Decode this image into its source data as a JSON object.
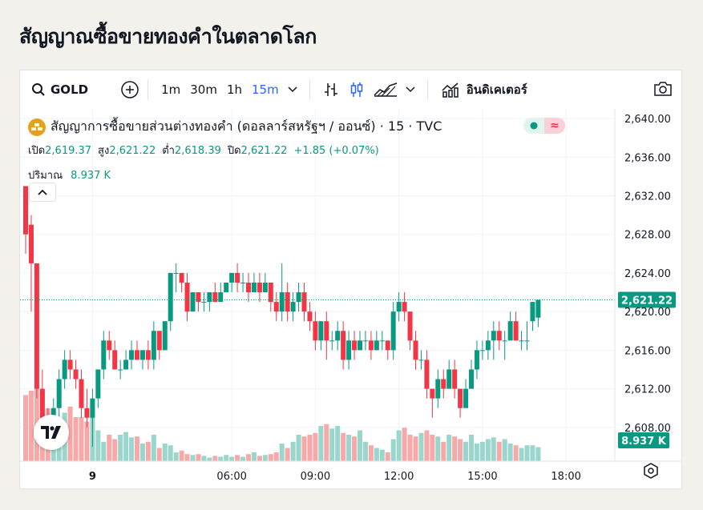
{
  "page": {
    "title": "สัญญาณซื้อขายทองคำในตลาดโลก"
  },
  "toolbar": {
    "symbol": "GOLD",
    "intervals": [
      "1m",
      "30m",
      "1h",
      "15m"
    ],
    "active_interval": "15m",
    "indicators_label": "อินดิเคเตอร์",
    "icons": [
      "search-icon",
      "add-compare-icon",
      "chevron-down-icon",
      "bar-chart-icon",
      "candlestick-icon",
      "area-chart-icon",
      "chevron-down-icon",
      "indicators-icon",
      "camera-icon"
    ]
  },
  "legend": {
    "title": "สัญญาการซื้อขายส่วนต่างทองคำ (ดอลลาร์สหรัฐฯ / ออนซ์) · 15 · TVC",
    "open_label": "เปิด",
    "open": "2,619.37",
    "high_label": "สูง",
    "high": "2,621.22",
    "low_label": "ต่ำ",
    "low": "2,618.39",
    "close_label": "ปิด",
    "close": "2,621.22",
    "change": "+1.85 (+0.07%)",
    "volume_label": "ปริมาณ",
    "volume": "8.937 K",
    "toggle_icon": "≈"
  },
  "colors": {
    "up": "#089981",
    "down": "#f23645",
    "up_vol": "#9ad6cc",
    "down_vol": "#f7a9a9",
    "accent": "#2962ff"
  },
  "chart_data": {
    "type": "candlestick",
    "x_ticks": [
      "9",
      "06:00",
      "09:00",
      "12:00",
      "15:00",
      "18:00"
    ],
    "y_ticks": [
      "2,640.00",
      "2,636.00",
      "2,632.00",
      "2,628.00",
      "2,624.00",
      "2,620.00",
      "2,616.00",
      "2,612.00",
      "2,608.00"
    ],
    "ylim": [
      2604.5,
      2641
    ],
    "last_price": "2,621.22",
    "last_price_value": 2621.22,
    "last_volume": "8.937 K",
    "candles": [
      [
        2633,
        2628,
        2629,
        2626
      ],
      [
        2629,
        2625,
        2630,
        2620
      ],
      [
        2625,
        2612,
        2625,
        2611
      ],
      [
        2612,
        2609,
        2614,
        2607
      ],
      [
        2609,
        2608,
        2610,
        2607
      ],
      [
        2608,
        2610,
        2611,
        2607
      ],
      [
        2610,
        2613,
        2614,
        2609
      ],
      [
        2613,
        2615,
        2616,
        2612
      ],
      [
        2615,
        2614,
        2616,
        2613
      ],
      [
        2614,
        2613,
        2615,
        2612
      ],
      [
        2613,
        2610,
        2614,
        2609
      ],
      [
        2610,
        2609,
        2612,
        2608
      ],
      [
        2609,
        2611,
        2612,
        2606
      ],
      [
        2611,
        2614,
        2614,
        2610
      ],
      [
        2614,
        2617,
        2618,
        2613
      ],
      [
        2617,
        2616,
        2618,
        2615
      ],
      [
        2616,
        2614,
        2617,
        2614
      ],
      [
        2614,
        2614,
        2615,
        2613
      ],
      [
        2614,
        2615,
        2616,
        2614
      ],
      [
        2615,
        2616,
        2617,
        2614
      ],
      [
        2616,
        2615,
        2617,
        2615
      ],
      [
        2615,
        2616,
        2616,
        2614
      ],
      [
        2616,
        2615,
        2617,
        2614
      ],
      [
        2615,
        2618,
        2619,
        2614
      ],
      [
        2618,
        2616,
        2618,
        2615
      ],
      [
        2616,
        2619,
        2619,
        2616
      ],
      [
        2619,
        2624,
        2624,
        2618
      ],
      [
        2624,
        2624,
        2625,
        2622
      ],
      [
        2624,
        2623,
        2624,
        2622
      ],
      [
        2623,
        2620,
        2624,
        2619
      ],
      [
        2620,
        2622,
        2622,
        2620
      ],
      [
        2622,
        2621,
        2622,
        2620
      ],
      [
        2621,
        2621,
        2622,
        2620
      ],
      [
        2621,
        2622,
        2622,
        2620
      ],
      [
        2622,
        2621,
        2623,
        2621
      ],
      [
        2621,
        2622,
        2623,
        2621
      ],
      [
        2622,
        2623,
        2623,
        2622
      ],
      [
        2623,
        2624,
        2624,
        2622
      ],
      [
        2624,
        2623,
        2625,
        2622
      ],
      [
        2623,
        2623,
        2624,
        2622
      ],
      [
        2623,
        2622,
        2624,
        2621
      ],
      [
        2622,
        2623,
        2624,
        2622
      ],
      [
        2623,
        2622,
        2624,
        2621
      ],
      [
        2622,
        2623,
        2624,
        2622
      ],
      [
        2623,
        2621,
        2623,
        2620
      ],
      [
        2621,
        2620,
        2622,
        2619
      ],
      [
        2620,
        2622,
        2625,
        2619
      ],
      [
        2622,
        2620,
        2623,
        2619
      ],
      [
        2620,
        2621,
        2622,
        2619
      ],
      [
        2621,
        2622,
        2623,
        2620
      ],
      [
        2622,
        2620,
        2623,
        2619
      ],
      [
        2620,
        2619,
        2621,
        2618
      ],
      [
        2619,
        2617,
        2620,
        2616
      ],
      [
        2617,
        2619,
        2619,
        2616
      ],
      [
        2619,
        2617,
        2620,
        2615
      ],
      [
        2617,
        2617,
        2618,
        2616
      ],
      [
        2617,
        2618,
        2619,
        2616
      ],
      [
        2618,
        2615,
        2619,
        2614
      ],
      [
        2615,
        2617,
        2618,
        2614
      ],
      [
        2617,
        2616,
        2618,
        2615
      ],
      [
        2616,
        2617,
        2618,
        2616
      ],
      [
        2617,
        2617,
        2618,
        2616
      ],
      [
        2617,
        2616,
        2618,
        2615
      ],
      [
        2616,
        2617,
        2618,
        2616
      ],
      [
        2617,
        2617,
        2618,
        2616
      ],
      [
        2617,
        2616,
        2617,
        2615
      ],
      [
        2616,
        2620,
        2621,
        2615
      ],
      [
        2620,
        2621,
        2622,
        2619
      ],
      [
        2621,
        2620,
        2622,
        2619
      ],
      [
        2620,
        2617,
        2620,
        2616
      ],
      [
        2617,
        2615,
        2618,
        2614
      ],
      [
        2615,
        2615,
        2616,
        2614
      ],
      [
        2615,
        2612,
        2616,
        2611
      ],
      [
        2612,
        2611,
        2612,
        2609
      ],
      [
        2611,
        2613,
        2614,
        2610
      ],
      [
        2613,
        2612,
        2614,
        2611
      ],
      [
        2612,
        2614,
        2615,
        2612
      ],
      [
        2614,
        2612,
        2615,
        2611
      ],
      [
        2612,
        2610,
        2612,
        2609
      ],
      [
        2610,
        2612,
        2613,
        2610
      ],
      [
        2612,
        2614,
        2615,
        2612
      ],
      [
        2614,
        2616,
        2617,
        2613
      ],
      [
        2616,
        2616,
        2617,
        2615
      ],
      [
        2616,
        2617,
        2618,
        2615
      ],
      [
        2617,
        2618,
        2619,
        2615
      ],
      [
        2618,
        2617,
        2619,
        2616
      ],
      [
        2617,
        2617,
        2618,
        2615
      ],
      [
        2617,
        2619,
        2620,
        2618
      ],
      [
        2619,
        2617,
        2620,
        2617
      ],
      [
        2617,
        2617,
        2618,
        2616
      ],
      [
        2617,
        2617,
        2619,
        2616
      ],
      [
        2619,
        2621,
        2621,
        2618
      ],
      [
        2619.37,
        2621.22,
        2621.22,
        2618.39
      ]
    ],
    "volumes": [
      0.75,
      0.8,
      0.85,
      0.78,
      0.6,
      0.5,
      0.35,
      0.55,
      0.62,
      0.5,
      0.5,
      0.45,
      0.62,
      0.35,
      0.22,
      0.3,
      0.25,
      0.3,
      0.33,
      0.27,
      0.28,
      0.2,
      0.22,
      0.3,
      0.15,
      0.2,
      0.18,
      0.1,
      0.12,
      0.08,
      0.07,
      0.08,
      0.06,
      0.04,
      0.06,
      0.05,
      0.07,
      0.05,
      0.07,
      0.05,
      0.08,
      0.1,
      0.06,
      0.07,
      0.08,
      0.1,
      0.2,
      0.15,
      0.22,
      0.3,
      0.28,
      0.3,
      0.32,
      0.4,
      0.42,
      0.37,
      0.4,
      0.32,
      0.3,
      0.28,
      0.35,
      0.22,
      0.18,
      0.15,
      0.13,
      0.1,
      0.25,
      0.35,
      0.38,
      0.3,
      0.28,
      0.32,
      0.35,
      0.3,
      0.28,
      0.22,
      0.3,
      0.28,
      0.25,
      0.22,
      0.3,
      0.2,
      0.22,
      0.25,
      0.27,
      0.22,
      0.25,
      0.2,
      0.18,
      0.15,
      0.18,
      0.18,
      0.16
    ]
  }
}
